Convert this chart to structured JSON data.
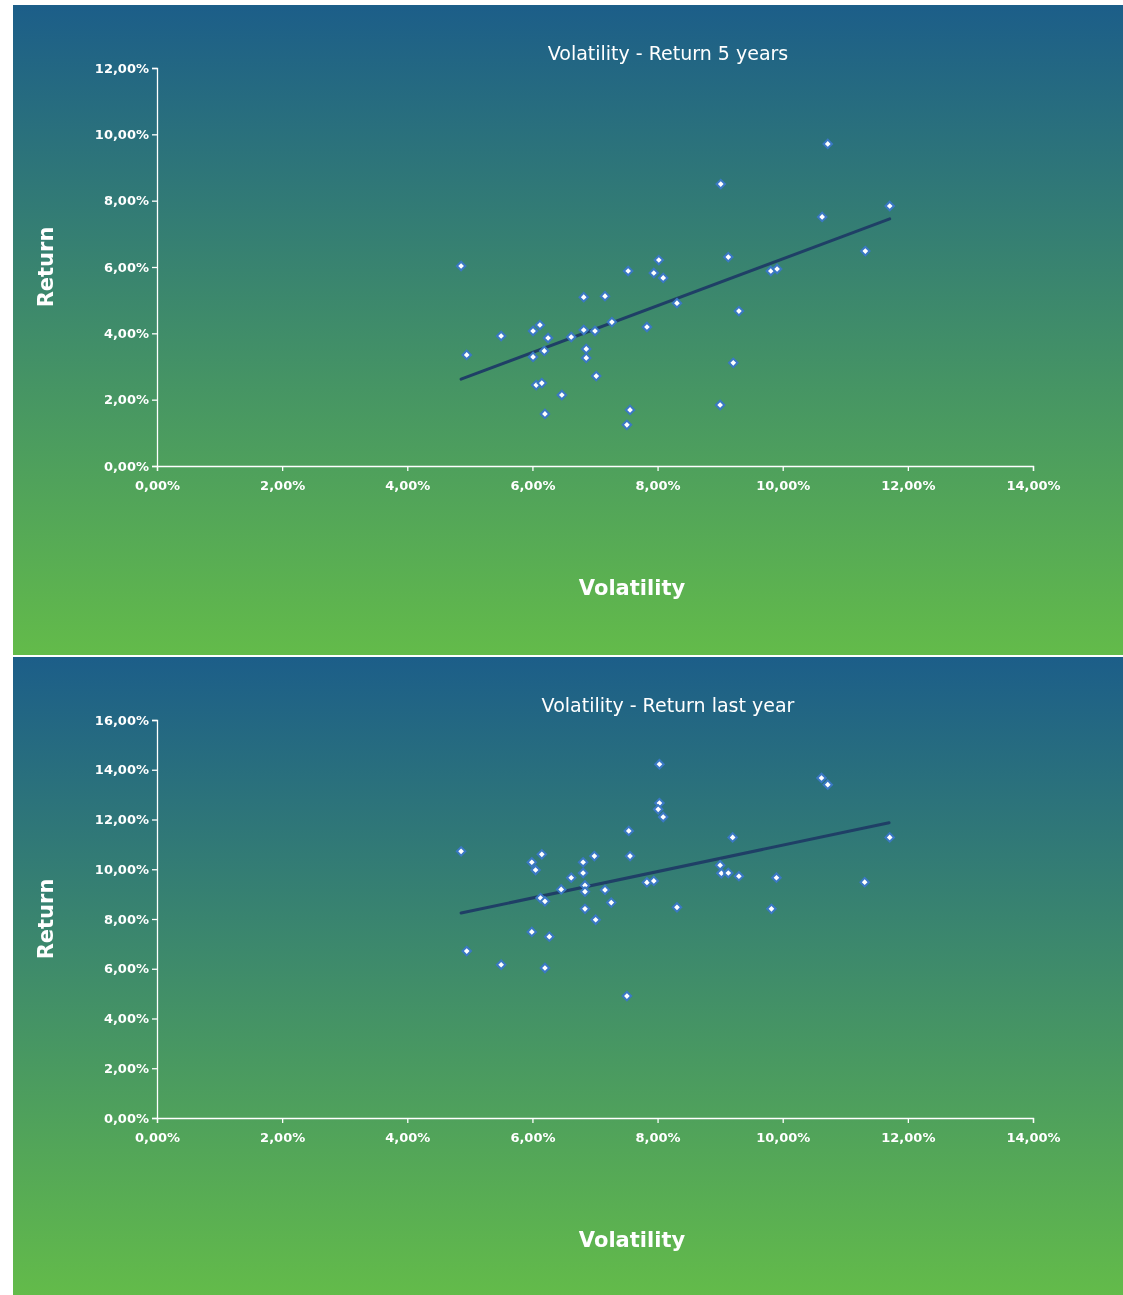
{
  "chart_data": [
    {
      "type": "scatter",
      "title": "Volatility - Return 5 years",
      "xlabel": "Volatility",
      "ylabel": "Return",
      "xlim": [
        0,
        14
      ],
      "xticks": [
        {
          "value": 0,
          "label": "0,00%"
        },
        {
          "value": 2,
          "label": "2,00%"
        },
        {
          "value": 4,
          "label": "4,00%"
        },
        {
          "value": 6,
          "label": "6,00%"
        },
        {
          "value": 8,
          "label": "8,00%"
        },
        {
          "value": 10,
          "label": "10,00%"
        },
        {
          "value": 12,
          "label": "12,00%"
        },
        {
          "value": 14,
          "label": "14,00%"
        }
      ],
      "ylim": [
        0,
        12
      ],
      "yticks": [
        {
          "value": 0,
          "label": "0,00%"
        },
        {
          "value": 2,
          "label": "2,00%"
        },
        {
          "value": 4,
          "label": "4,00%"
        },
        {
          "value": 6,
          "label": "6,00%"
        },
        {
          "value": 8,
          "label": "8,00%"
        },
        {
          "value": 10,
          "label": "10,00%"
        },
        {
          "value": 12,
          "label": "12,00%"
        }
      ],
      "series": [
        {
          "marker": "diamond",
          "color": "#ffffff",
          "x": [
            4.86,
            4.95,
            5.5,
            6.01,
            6.12,
            6.01,
            6.25,
            6.19,
            6.06,
            6.15,
            6.2,
            6.47,
            6.62,
            6.82,
            6.82,
            6.86,
            6.86,
            7.0,
            7.16,
            7.27,
            7.02,
            7.53,
            7.56,
            7.51,
            7.83,
            7.94,
            8.02,
            8.09,
            8.31,
            9.01,
            9.13,
            9.3,
            9.21,
            9.0,
            9.81,
            9.91,
            10.63,
            10.72,
            11.32,
            11.71
          ],
          "values": [
            6.03,
            3.35,
            3.92,
            4.07,
            4.25,
            3.29,
            3.86,
            3.47,
            2.44,
            2.5,
            1.57,
            2.14,
            3.89,
            5.09,
            4.1,
            3.53,
            3.26,
            4.07,
            5.12,
            4.34,
            2.71,
            5.88,
            1.69,
            1.24,
            4.19,
            5.82,
            6.21,
            5.67,
            4.91,
            8.5,
            6.3,
            4.67,
            3.11,
            1.84,
            5.88,
            5.94,
            7.51,
            9.71,
            6.48,
            7.84
          ]
        },
        {
          "type": "line",
          "marker": "none",
          "color": "#1f3f66",
          "x": [
            4.86,
            11.71
          ],
          "values": [
            2.62,
            7.45
          ]
        }
      ]
    },
    {
      "type": "scatter",
      "title": "Volatility - Return last year",
      "xlabel": "Volatility",
      "ylabel": "Return",
      "xlim": [
        0,
        14
      ],
      "xticks": [
        {
          "value": 0,
          "label": "0,00%"
        },
        {
          "value": 2,
          "label": "2,00%"
        },
        {
          "value": 4,
          "label": "4,00%"
        },
        {
          "value": 6,
          "label": "6,00%"
        },
        {
          "value": 8,
          "label": "8,00%"
        },
        {
          "value": 10,
          "label": "10,00%"
        },
        {
          "value": 12,
          "label": "12,00%"
        },
        {
          "value": 14,
          "label": "14,00%"
        }
      ],
      "ylim": [
        0,
        16
      ],
      "yticks": [
        {
          "value": 0,
          "label": "0,00%"
        },
        {
          "value": 2,
          "label": "2,00%"
        },
        {
          "value": 4,
          "label": "4,00%"
        },
        {
          "value": 6,
          "label": "6,00%"
        },
        {
          "value": 8,
          "label": "8,00%"
        },
        {
          "value": 10,
          "label": "10,00%"
        },
        {
          "value": 12,
          "label": "12,00%"
        },
        {
          "value": 14,
          "label": "14,00%"
        },
        {
          "value": 16,
          "label": "16,00%"
        }
      ],
      "series": [
        {
          "marker": "diamond",
          "color": "#ffffff",
          "x": [
            4.86,
            4.95,
            5.5,
            5.99,
            6.05,
            6.15,
            6.13,
            6.2,
            5.99,
            6.27,
            6.2,
            6.46,
            6.62,
            6.81,
            6.81,
            6.84,
            6.84,
            6.84,
            6.99,
            7.01,
            7.16,
            7.26,
            7.54,
            7.56,
            7.51,
            7.83,
            7.94,
            8.03,
            8.03,
            8.01,
            8.09,
            8.31,
            9.0,
            9.02,
            9.13,
            9.2,
            9.3,
            9.82,
            9.9,
            10.62,
            10.72,
            11.31,
            11.71
          ],
          "values": [
            10.72,
            6.71,
            6.16,
            10.28,
            9.97,
            10.6,
            8.84,
            8.71,
            7.48,
            7.29,
            6.03,
            9.19,
            9.66,
            10.28,
            9.85,
            9.35,
            9.1,
            8.41,
            10.53,
            7.97,
            9.17,
            8.66,
            11.54,
            10.53,
            4.9,
            9.47,
            9.53,
            14.22,
            12.66,
            12.41,
            12.1,
            8.47,
            10.16,
            9.84,
            9.85,
            11.28,
            9.72,
            8.41,
            9.66,
            13.67,
            13.4,
            9.48,
            11.28
          ]
        },
        {
          "type": "line",
          "marker": "none",
          "color": "#1f3f66",
          "x": [
            4.86,
            11.7
          ],
          "values": [
            8.24,
            11.87
          ]
        }
      ]
    }
  ]
}
